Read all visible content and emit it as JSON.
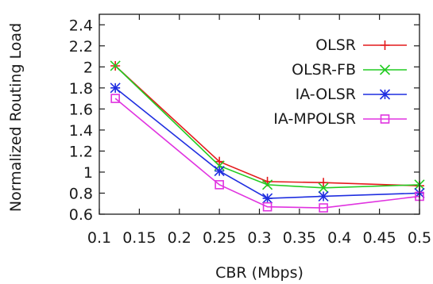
{
  "chart_data": {
    "type": "line",
    "xlabel": "CBR (Mbps)",
    "ylabel": "Normalized Routing Load",
    "xlim": [
      0.1,
      0.5
    ],
    "ylim": [
      0.6,
      2.5
    ],
    "x_ticks": [
      "0.1",
      "0.15",
      "0.2",
      "0.25",
      "0.3",
      "0.35",
      "0.4",
      "0.45",
      "0.5"
    ],
    "y_ticks": [
      "0.6",
      "0.8",
      "1",
      "1.2",
      "1.4",
      "1.6",
      "1.8",
      "2",
      "2.2",
      "2.4"
    ],
    "grid": false,
    "legend_position": "top-right",
    "x": [
      0.12,
      0.25,
      0.31,
      0.38,
      0.5
    ],
    "series": [
      {
        "name": "OLSR",
        "values": [
          2.01,
          1.1,
          0.91,
          0.9,
          0.87
        ],
        "color": "#e41a1c",
        "marker": "plus"
      },
      {
        "name": "OLSR-FB",
        "values": [
          2.01,
          1.06,
          0.88,
          0.85,
          0.88
        ],
        "color": "#22cc22",
        "marker": "cross"
      },
      {
        "name": "IA-OLSR",
        "values": [
          1.8,
          1.01,
          0.75,
          0.77,
          0.8
        ],
        "color": "#1f2ee0",
        "marker": "star"
      },
      {
        "name": "IA-MPOLSR",
        "values": [
          1.7,
          0.88,
          0.67,
          0.66,
          0.77
        ],
        "color": "#e033e0",
        "marker": "square"
      }
    ]
  }
}
